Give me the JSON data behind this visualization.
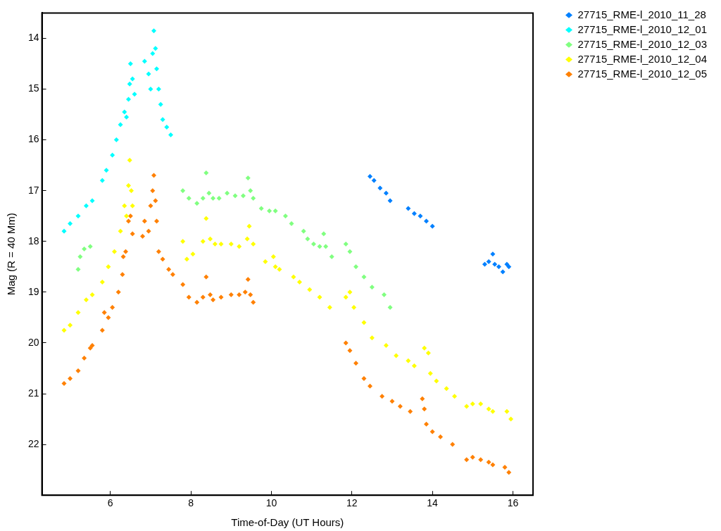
{
  "chart_data": {
    "type": "scatter",
    "xlabel": "Time-of-Day (UT Hours)",
    "ylabel": "Mag (R = 40 Mm)",
    "xlim": [
      4.3,
      16.5
    ],
    "xticks": [
      6,
      8,
      10,
      12,
      14,
      16
    ],
    "ylim": [
      23,
      13.5
    ],
    "yticks": [
      14,
      15,
      16,
      17,
      18,
      19,
      20,
      21,
      22
    ],
    "grid": false,
    "legend": "top right",
    "marker": "diamond",
    "series": [
      {
        "name": "27715_RME-l_2010_11_28",
        "color": "#0080ff",
        "x": [
          12.45,
          12.55,
          12.7,
          12.85,
          12.95,
          13.4,
          13.55,
          13.7,
          13.85,
          14.0,
          15.3,
          15.4,
          15.5,
          15.55,
          15.65,
          15.75,
          15.85,
          15.9
        ],
        "values": [
          16.72,
          16.8,
          16.95,
          17.05,
          17.2,
          17.35,
          17.45,
          17.5,
          17.6,
          17.7,
          18.45,
          18.4,
          18.25,
          18.45,
          18.5,
          18.6,
          18.45,
          18.5
        ]
      },
      {
        "name": "27715_RME-l_2010_12_01",
        "color": "#00ffff",
        "x": [
          4.85,
          5.0,
          5.2,
          5.4,
          5.55,
          5.8,
          5.9,
          6.05,
          6.15,
          6.25,
          6.35,
          6.4,
          6.45,
          6.48,
          6.5,
          6.55,
          6.6,
          6.85,
          6.95,
          7.0,
          7.05,
          7.08,
          7.12,
          7.15,
          7.2,
          7.25,
          7.3,
          7.4,
          7.5
        ],
        "values": [
          17.8,
          17.65,
          17.5,
          17.3,
          17.2,
          16.8,
          16.6,
          16.3,
          16.0,
          15.7,
          15.45,
          15.55,
          15.2,
          14.9,
          14.5,
          14.8,
          15.1,
          14.45,
          14.7,
          15.0,
          14.3,
          13.85,
          14.2,
          14.6,
          15.0,
          15.3,
          15.6,
          15.75,
          15.9
        ]
      },
      {
        "name": "27715_RME-l_2010_12_03",
        "color": "#80ff80",
        "x": [
          5.2,
          5.25,
          5.35,
          5.5,
          7.8,
          7.95,
          8.15,
          8.3,
          8.38,
          8.45,
          8.55,
          8.7,
          8.9,
          9.1,
          9.3,
          9.42,
          9.48,
          9.55,
          9.75,
          9.95,
          10.1,
          10.35,
          10.5,
          10.8,
          10.9,
          11.05,
          11.2,
          11.3,
          11.35,
          11.5,
          11.85,
          11.95,
          12.1,
          12.3,
          12.5,
          12.8,
          12.95
        ],
        "values": [
          18.55,
          18.3,
          18.15,
          18.1,
          17.0,
          17.15,
          17.25,
          17.15,
          16.65,
          17.05,
          17.15,
          17.15,
          17.05,
          17.1,
          17.1,
          16.75,
          17.0,
          17.15,
          17.35,
          17.4,
          17.4,
          17.5,
          17.65,
          17.8,
          17.95,
          18.05,
          18.1,
          17.85,
          18.1,
          18.3,
          18.05,
          18.2,
          18.5,
          18.7,
          18.9,
          19.05,
          19.3
        ]
      },
      {
        "name": "27715_RME-l_2010_12_04",
        "color": "#ffff00",
        "x": [
          4.85,
          5.0,
          5.2,
          5.4,
          5.55,
          5.8,
          5.95,
          6.1,
          6.25,
          6.35,
          6.4,
          6.45,
          6.48,
          6.52,
          6.55,
          7.8,
          7.9,
          8.05,
          8.3,
          8.38,
          8.48,
          8.6,
          8.75,
          9.0,
          9.2,
          9.4,
          9.45,
          9.55,
          9.85,
          10.05,
          10.1,
          10.2,
          10.55,
          10.7,
          10.95,
          11.2,
          11.45,
          11.85,
          11.95,
          12.05,
          12.3,
          12.5,
          12.85,
          13.1,
          13.4,
          13.55,
          13.8,
          13.9,
          13.95,
          14.1,
          14.35,
          14.55,
          14.85,
          15.0,
          15.2,
          15.4,
          15.5,
          15.85,
          15.95
        ],
        "values": [
          19.75,
          19.65,
          19.4,
          19.15,
          19.05,
          18.8,
          18.5,
          18.2,
          17.8,
          17.3,
          17.5,
          16.9,
          16.4,
          17.0,
          17.3,
          18.0,
          18.35,
          18.25,
          18.0,
          17.55,
          17.95,
          18.05,
          18.05,
          18.05,
          18.1,
          17.95,
          17.7,
          18.05,
          18.4,
          18.3,
          18.5,
          18.55,
          18.7,
          18.8,
          18.95,
          19.1,
          19.3,
          19.1,
          19.0,
          19.3,
          19.6,
          19.9,
          20.05,
          20.25,
          20.35,
          20.45,
          20.1,
          20.2,
          20.6,
          20.75,
          20.9,
          21.05,
          21.25,
          21.2,
          21.2,
          21.3,
          21.35,
          21.35,
          21.5
        ]
      },
      {
        "name": "27715_RME-l_2010_12_05",
        "color": "#ff8000",
        "x": [
          4.85,
          5.0,
          5.2,
          5.35,
          5.5,
          5.55,
          5.8,
          5.85,
          5.95,
          6.05,
          6.2,
          6.3,
          6.32,
          6.38,
          6.45,
          6.5,
          6.55,
          6.8,
          6.85,
          6.95,
          7.0,
          7.05,
          7.08,
          7.12,
          7.15,
          7.2,
          7.3,
          7.45,
          7.55,
          7.8,
          7.95,
          8.15,
          8.3,
          8.38,
          8.48,
          8.55,
          8.75,
          9.0,
          9.2,
          9.35,
          9.42,
          9.48,
          9.55,
          11.85,
          11.95,
          12.1,
          12.3,
          12.45,
          12.75,
          13.0,
          13.2,
          13.45,
          13.75,
          13.8,
          13.85,
          14.0,
          14.2,
          14.5,
          14.85,
          15.0,
          15.2,
          15.4,
          15.5,
          15.8,
          15.9
        ],
        "values": [
          20.8,
          20.7,
          20.55,
          20.3,
          20.1,
          20.05,
          19.75,
          19.4,
          19.5,
          19.3,
          19.0,
          18.65,
          18.3,
          18.2,
          17.6,
          17.5,
          17.85,
          17.9,
          17.6,
          17.8,
          17.3,
          17.0,
          16.7,
          17.2,
          17.6,
          18.2,
          18.35,
          18.55,
          18.65,
          18.85,
          19.1,
          19.2,
          19.1,
          18.7,
          19.05,
          19.15,
          19.1,
          19.05,
          19.05,
          19.0,
          18.75,
          19.05,
          19.2,
          20.0,
          20.15,
          20.4,
          20.7,
          20.85,
          21.05,
          21.15,
          21.25,
          21.35,
          21.1,
          21.3,
          21.6,
          21.75,
          21.85,
          22.0,
          22.3,
          22.25,
          22.3,
          22.35,
          22.4,
          22.45,
          22.55
        ]
      }
    ]
  }
}
